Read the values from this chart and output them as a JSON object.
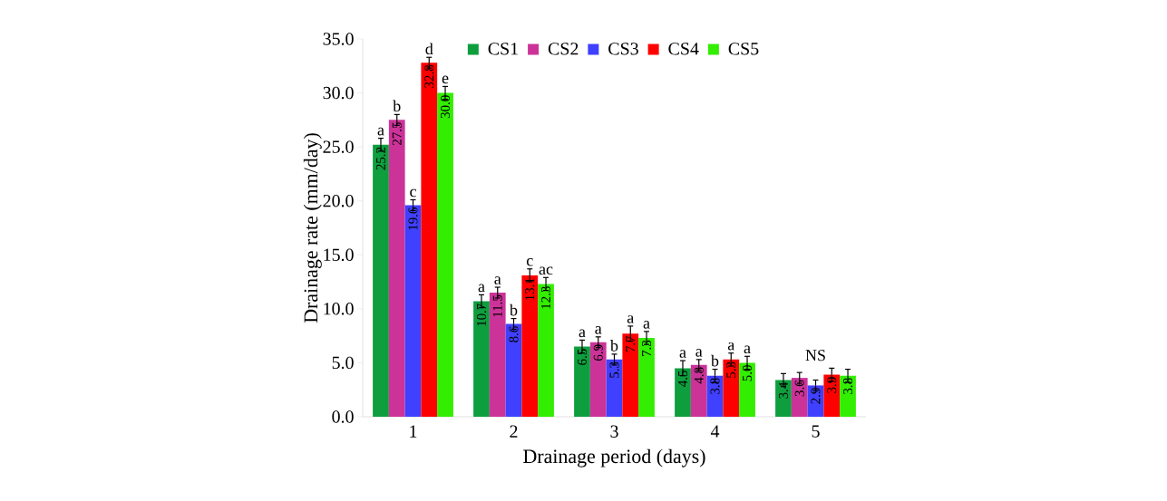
{
  "chart_data": {
    "type": "bar",
    "xlabel": "Drainage period (days)",
    "ylabel": "Drainage rate (mm/day)",
    "categories": [
      "1",
      "2",
      "3",
      "4",
      "5"
    ],
    "series": [
      {
        "name": "CS1",
        "color": "#0e9e3e",
        "values": [
          25.2,
          10.7,
          6.5,
          4.5,
          3.4
        ],
        "errors": [
          0.6,
          0.6,
          0.6,
          0.7,
          0.6
        ],
        "value_labels": [
          "25.2",
          "10.7",
          "6.5",
          "4.5",
          "3.4"
        ]
      },
      {
        "name": "CS2",
        "color": "#cc3399",
        "values": [
          27.5,
          11.5,
          6.9,
          4.8,
          3.6
        ],
        "errors": [
          0.5,
          0.5,
          0.5,
          0.5,
          0.5
        ],
        "value_labels": [
          "27.5",
          "11.5",
          "6.9",
          "4.8",
          "3.6"
        ]
      },
      {
        "name": "CS3",
        "color": "#4040ff",
        "values": [
          19.6,
          8.6,
          5.3,
          3.8,
          2.9
        ],
        "errors": [
          0.5,
          0.5,
          0.5,
          0.6,
          0.5
        ],
        "value_labels": [
          "19.6",
          "8.6",
          "5.3",
          "3.8",
          "2.9"
        ]
      },
      {
        "name": "CS4",
        "color": "#ff0000",
        "values": [
          32.8,
          13.1,
          7.7,
          5.3,
          3.9
        ],
        "errors": [
          0.5,
          0.6,
          0.7,
          0.6,
          0.6
        ],
        "value_labels": [
          "32.8",
          "13.1",
          "7.7",
          "5.3",
          "3.9"
        ]
      },
      {
        "name": "CS5",
        "color": "#33ee00",
        "values": [
          30.0,
          12.3,
          7.3,
          5.0,
          3.8
        ],
        "errors": [
          0.6,
          0.6,
          0.6,
          0.6,
          0.6
        ],
        "value_labels": [
          "30.0",
          "12.3",
          "7.3",
          "5.0",
          "3.8"
        ]
      }
    ],
    "ylim": [
      0,
      35
    ],
    "yticks": [
      {
        "value": 0,
        "label": "0.0"
      },
      {
        "value": 5,
        "label": "5.0"
      },
      {
        "value": 10,
        "label": "10.0"
      },
      {
        "value": 15,
        "label": "15.0"
      },
      {
        "value": 20,
        "label": "20.0"
      },
      {
        "value": 25,
        "label": "25.0"
      },
      {
        "value": 30,
        "label": "30.0"
      },
      {
        "value": 35,
        "label": "35.0"
      }
    ],
    "legend": "top",
    "annotations": [
      "a",
      "b",
      "c",
      "d",
      "e",
      "a",
      "a",
      "b",
      "c",
      "ac",
      "a",
      "a",
      "b",
      "a",
      "a",
      "a",
      "a",
      "b",
      "a",
      "a",
      "NS"
    ]
  }
}
